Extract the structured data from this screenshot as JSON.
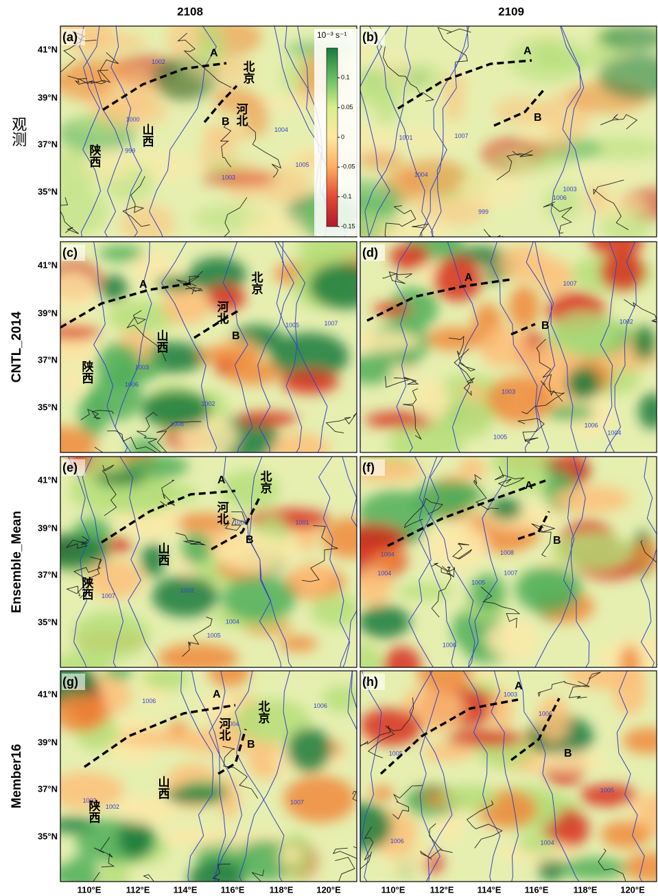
{
  "columns": [
    "2108",
    "2109"
  ],
  "rows": [
    "观测",
    "CNTL_2014",
    "Ensemble_Mean",
    "Member16"
  ],
  "panels": [
    {
      "label": "(a)",
      "A": "A",
      "B": "B",
      "provinces": [
        "北京",
        "河北",
        "山西",
        "陕西"
      ],
      "isobars": [
        "1002",
        "1000",
        "999",
        "1003",
        "1004",
        "1005"
      ]
    },
    {
      "label": "(b)",
      "A": "A",
      "B": "B",
      "isobars": [
        "1003",
        "1006",
        "1001",
        "999",
        "1004",
        "1007"
      ]
    },
    {
      "label": "(c)",
      "A": "A",
      "B": "B",
      "provinces": [
        "北京",
        "河北",
        "山西",
        "陕西"
      ],
      "isobars": [
        "1002",
        "1003",
        "1005",
        "1006",
        "1007",
        "1008"
      ]
    },
    {
      "label": "(d)",
      "A": "A",
      "B": "B",
      "isobars": [
        "1003",
        "1002",
        "1004",
        "1005",
        "1007",
        "1006"
      ]
    },
    {
      "label": "(e)",
      "A": "A",
      "B": "B",
      "provinces": [
        "北京",
        "河北",
        "山西",
        "陕西"
      ],
      "isobars": [
        "1008",
        "1004",
        "1001",
        "1002",
        "1005",
        "1007"
      ]
    },
    {
      "label": "(f)",
      "A": "A",
      "B": "B",
      "isobars": [
        "1008",
        "1004",
        "1007",
        "1005",
        "1006",
        "1004"
      ]
    },
    {
      "label": "(g)",
      "A": "A",
      "B": "B",
      "provinces": [
        "北京",
        "河北",
        "山西",
        "陕西"
      ],
      "isobars": [
        "1006",
        "1002",
        "1003",
        "1004",
        "1006",
        "1007"
      ]
    },
    {
      "label": "(h)",
      "A": "A",
      "B": "B",
      "isobars": [
        "1006",
        "1005",
        "1004",
        "1005",
        "1003",
        "1006"
      ]
    }
  ],
  "lat_ticks": [
    "41°N",
    "39°N",
    "37°N",
    "35°N"
  ],
  "lon_ticks": [
    "110°E",
    "112°E",
    "114°E",
    "116°E",
    "118°E",
    "120°E"
  ],
  "colorbar": {
    "unit": "10⁻³ s⁻¹",
    "lim": [
      -0.15,
      0.15
    ],
    "ticks": [
      0.1,
      0.05,
      0,
      -0.05,
      -0.1,
      -0.15
    ],
    "colors": [
      "#b2182b",
      "#e34a33",
      "#fdae61",
      "#fee8a0",
      "#d9ef8b",
      "#66bd63",
      "#1a7a3c"
    ]
  }
}
